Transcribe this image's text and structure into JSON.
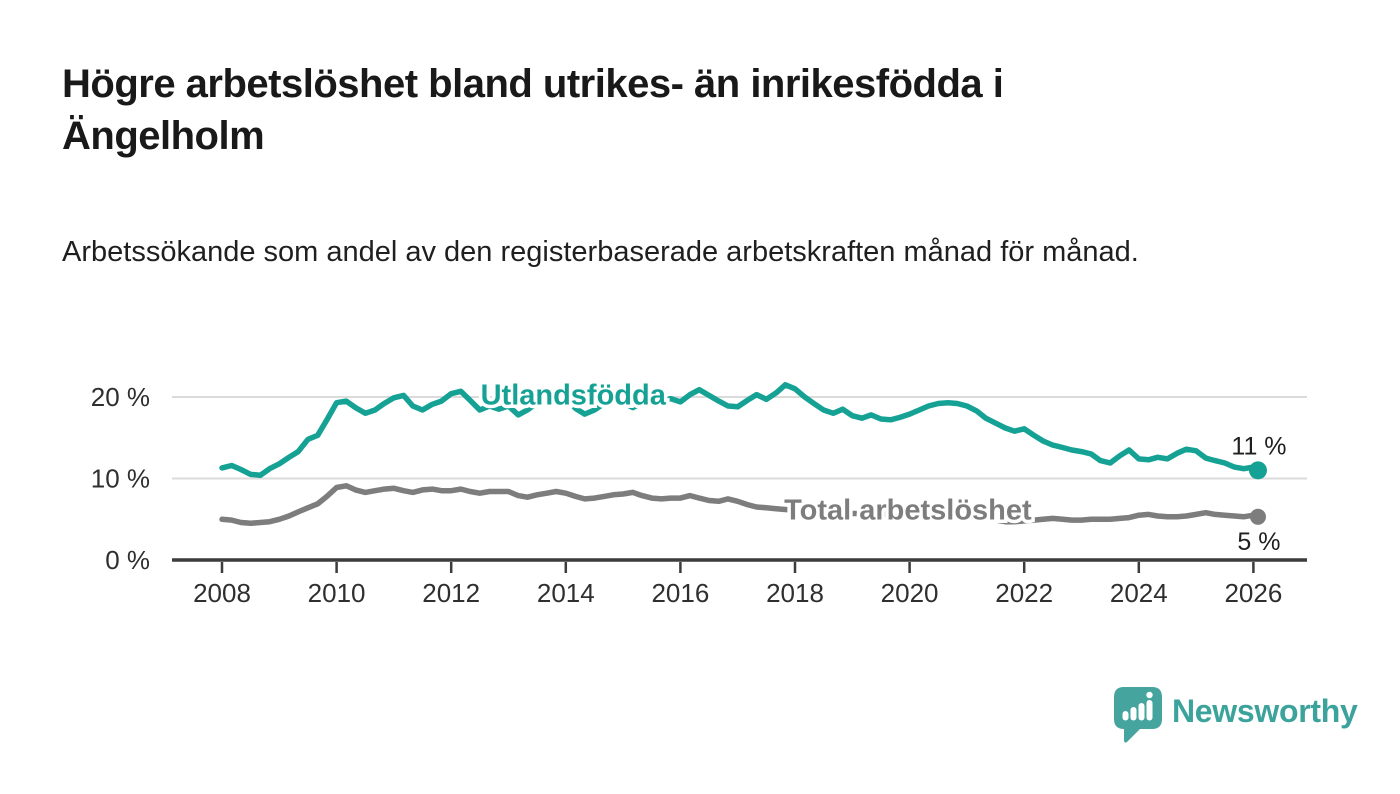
{
  "header": {
    "title": "Högre arbetslöshet bland utrikes- än inrikesfödda i Ängelholm",
    "subtitle": "Arbetssökande som andel av den registerbaserade arbetskraften månad för månad."
  },
  "chart_data": {
    "type": "line",
    "title": "Högre arbetslöshet bland utrikes- än inrikesfödda i Ängelholm",
    "subtitle": "Arbetssökande som andel av den registerbaserade arbetskraften månad för månad.",
    "xlabel": "",
    "ylabel": "",
    "x_unit": "decimal_year",
    "xlim": [
      2007.13,
      2026.94
    ],
    "ylim": [
      0,
      23
    ],
    "grid": "horizontal",
    "legend": "inline-labels",
    "xticks": {
      "values": [
        2008,
        2010,
        2012,
        2014,
        2016,
        2018,
        2020,
        2022,
        2024,
        2026
      ],
      "labels": [
        "2008",
        "2010",
        "2012",
        "2014",
        "2016",
        "2018",
        "2020",
        "2022",
        "2024",
        "2026"
      ]
    },
    "yticks": {
      "values": [
        0,
        10,
        20
      ],
      "labels": [
        "0 %",
        "10 %",
        "20 %"
      ]
    },
    "x": [
      2008.0,
      2008.17,
      2008.33,
      2008.5,
      2008.67,
      2008.83,
      2009.0,
      2009.17,
      2009.33,
      2009.5,
      2009.67,
      2009.83,
      2010.0,
      2010.17,
      2010.33,
      2010.5,
      2010.67,
      2010.83,
      2011.0,
      2011.17,
      2011.33,
      2011.5,
      2011.67,
      2011.83,
      2012.0,
      2012.17,
      2012.33,
      2012.5,
      2012.67,
      2012.83,
      2013.0,
      2013.17,
      2013.33,
      2013.5,
      2013.67,
      2013.83,
      2014.0,
      2014.17,
      2014.33,
      2014.5,
      2014.67,
      2014.83,
      2015.0,
      2015.17,
      2015.33,
      2015.5,
      2015.67,
      2015.83,
      2016.0,
      2016.17,
      2016.33,
      2016.5,
      2016.67,
      2016.83,
      2017.0,
      2017.17,
      2017.33,
      2017.5,
      2017.67,
      2017.83,
      2018.0,
      2018.17,
      2018.33,
      2018.5,
      2018.67,
      2018.83,
      2019.0,
      2019.17,
      2019.33,
      2019.5,
      2019.67,
      2019.83,
      2020.0,
      2020.17,
      2020.33,
      2020.5,
      2020.67,
      2020.83,
      2021.0,
      2021.17,
      2021.33,
      2021.5,
      2021.67,
      2021.83,
      2022.0,
      2022.17,
      2022.33,
      2022.5,
      2022.67,
      2022.83,
      2023.0,
      2023.17,
      2023.33,
      2023.5,
      2023.67,
      2023.83,
      2024.0,
      2024.17,
      2024.33,
      2024.5,
      2024.67,
      2024.83,
      2025.0,
      2025.17,
      2025.33,
      2025.5,
      2025.67,
      2025.83,
      2026.0,
      2026.08
    ],
    "series": [
      {
        "name": "Utlandsfödda",
        "color": "#15A295",
        "end_label": "11 %",
        "end_value": 11,
        "values": [
          11.3,
          11.6,
          11.1,
          10.5,
          10.4,
          11.2,
          11.8,
          12.6,
          13.3,
          14.8,
          15.3,
          17.2,
          19.3,
          19.5,
          18.7,
          18.0,
          18.4,
          19.2,
          19.9,
          20.2,
          18.9,
          18.4,
          19.1,
          19.5,
          20.4,
          20.7,
          19.6,
          18.4,
          18.9,
          18.5,
          18.9,
          17.8,
          18.4,
          19.3,
          19.8,
          19.4,
          19.9,
          18.6,
          17.9,
          18.4,
          19.2,
          19.7,
          19.3,
          18.7,
          19.3,
          19.9,
          19.5,
          19.8,
          19.4,
          20.3,
          20.9,
          20.2,
          19.5,
          18.9,
          18.8,
          19.6,
          20.3,
          19.7,
          20.5,
          21.5,
          21.0,
          20.0,
          19.2,
          18.4,
          18.0,
          18.5,
          17.7,
          17.4,
          17.8,
          17.3,
          17.2,
          17.5,
          17.9,
          18.4,
          18.9,
          19.2,
          19.3,
          19.2,
          18.9,
          18.3,
          17.4,
          16.8,
          16.2,
          15.8,
          16.1,
          15.3,
          14.6,
          14.1,
          13.8,
          13.5,
          13.3,
          13.0,
          12.2,
          11.9,
          12.8,
          13.5,
          12.4,
          12.3,
          12.6,
          12.4,
          13.1,
          13.6,
          13.4,
          12.5,
          12.2,
          11.9,
          11.4,
          11.2,
          11.4,
          11.0
        ]
      },
      {
        "name": "Total arbetslöshet",
        "color": "#7D7D7D",
        "end_label": "5 %",
        "end_value": 5,
        "values": [
          5.0,
          4.9,
          4.6,
          4.5,
          4.6,
          4.7,
          5.0,
          5.4,
          5.9,
          6.4,
          6.9,
          7.8,
          8.9,
          9.1,
          8.6,
          8.3,
          8.5,
          8.7,
          8.8,
          8.5,
          8.3,
          8.6,
          8.7,
          8.5,
          8.5,
          8.7,
          8.4,
          8.2,
          8.4,
          8.4,
          8.4,
          7.9,
          7.7,
          8.0,
          8.2,
          8.4,
          8.2,
          7.8,
          7.5,
          7.6,
          7.8,
          8.0,
          8.1,
          8.3,
          7.9,
          7.6,
          7.5,
          7.6,
          7.6,
          7.9,
          7.6,
          7.3,
          7.2,
          7.5,
          7.2,
          6.8,
          6.5,
          6.4,
          6.3,
          6.2,
          6.1,
          6.0,
          5.9,
          5.9,
          5.8,
          5.8,
          5.7,
          5.7,
          5.6,
          5.6,
          5.7,
          5.9,
          6.1,
          6.3,
          6.4,
          6.3,
          6.2,
          6.0,
          5.7,
          5.4,
          5.1,
          4.9,
          4.7,
          4.7,
          4.8,
          4.9,
          5.0,
          5.1,
          5.0,
          4.9,
          4.9,
          5.0,
          5.0,
          5.0,
          5.1,
          5.2,
          5.5,
          5.6,
          5.4,
          5.3,
          5.3,
          5.4,
          5.6,
          5.8,
          5.6,
          5.5,
          5.4,
          5.3,
          5.5,
          5.3
        ]
      }
    ],
    "series_label_positions": [
      {
        "x": 2014.13,
        "y": 19.1
      },
      {
        "x": 2019.97,
        "y": 5.0
      }
    ],
    "colors": {
      "grid": "#DBDBDB",
      "axis": "#3C3C3C",
      "tick_text": "#2F2F2F",
      "end_label_text": "#1F1F1F"
    }
  },
  "branding": {
    "logo_text": "Newsworthy",
    "logo_icon": "speech-bubble-bar-chart-icon",
    "logo_text_color": "#3BA39C",
    "logo_icon_color": "#45A49E"
  }
}
